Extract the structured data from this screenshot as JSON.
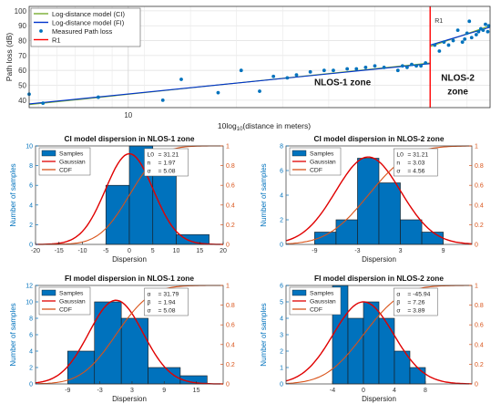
{
  "chart_data": [
    {
      "type": "scatter",
      "title": "",
      "xlabel": "10log10(distance in meters)",
      "ylabel": "Path loss (dB)",
      "xlim": [
        0,
        100
      ],
      "ylim": [
        35,
        103
      ],
      "xticks": [
        {
          "value": 21.5,
          "label": "10"
        }
      ],
      "yticks": [
        40,
        50,
        60,
        70,
        80,
        90,
        100
      ],
      "grid": true,
      "legend": {
        "placement": "top-left",
        "entries": [
          {
            "name": "Log-distance model (CI)",
            "color": "#77ac30",
            "kind": "line"
          },
          {
            "name": "Log-distance model (FI)",
            "color": "#0033cc",
            "kind": "line"
          },
          {
            "name": "Measured Path loss",
            "color": "#0072bd",
            "kind": "marker"
          },
          {
            "name": "R1",
            "color": "#ff0000",
            "kind": "line"
          }
        ]
      },
      "series": [
        {
          "name": "Measured Path loss",
          "points": [
            [
              0,
              44
            ],
            [
              3,
              38
            ],
            [
              15,
              42
            ],
            [
              29,
              40
            ],
            [
              33,
              54
            ],
            [
              41,
              45
            ],
            [
              46,
              60
            ],
            [
              50,
              46
            ],
            [
              53,
              56
            ],
            [
              56,
              55
            ],
            [
              58,
              57
            ],
            [
              61,
              59
            ],
            [
              64,
              60
            ],
            [
              66,
              60
            ],
            [
              69,
              61
            ],
            [
              71,
              61
            ],
            [
              73,
              62
            ],
            [
              75,
              63
            ],
            [
              77,
              62
            ],
            [
              80,
              60
            ],
            [
              81,
              63
            ],
            [
              82,
              62
            ],
            [
              83,
              64
            ],
            [
              84,
              63
            ],
            [
              85,
              63
            ],
            [
              86,
              65
            ],
            [
              88,
              77
            ],
            [
              89,
              73
            ],
            [
              90,
              79
            ],
            [
              91,
              77
            ],
            [
              92,
              80
            ],
            [
              93,
              87
            ],
            [
              94,
              79
            ],
            [
              94.5,
              81
            ],
            [
              95,
              85
            ],
            [
              95.5,
              93
            ],
            [
              96,
              82
            ],
            [
              97,
              84
            ],
            [
              97.5,
              86
            ],
            [
              98,
              88
            ],
            [
              98.5,
              87
            ],
            [
              99,
              91
            ],
            [
              99.5,
              86
            ],
            [
              99.7,
              90
            ]
          ]
        },
        {
          "name": "Log-distance model (CI)",
          "points": [
            [
              0,
              37
            ],
            [
              87,
              65
            ]
          ],
          "color": "#77ac30"
        },
        {
          "name": "Log-distance model (FI)",
          "points": [
            [
              0,
              37.5
            ],
            [
              87,
              64.5
            ]
          ],
          "color": "#0033cc"
        },
        {
          "name": "Log-distance model (CI) NLOS-2",
          "points": [
            [
              87,
              76
            ],
            [
              100,
              90
            ]
          ],
          "color": "#77ac30"
        },
        {
          "name": "Log-distance model (FI) NLOS-2",
          "points": [
            [
              87,
              77
            ],
            [
              100,
              89
            ]
          ],
          "color": "#0033cc"
        }
      ],
      "vline": {
        "name": "R1",
        "x": 87,
        "label": "R1"
      },
      "annotations": [
        {
          "text": "NLOS-1 zone",
          "x": 68,
          "y": 50
        },
        {
          "text": "NLOS-2",
          "x": 93,
          "y": 53
        },
        {
          "text": "zone",
          "x": 93,
          "y": 44
        }
      ]
    },
    {
      "type": "histogram",
      "title": "CI model dispersion in NLOS-1 zone",
      "xlabel": "Dispersion",
      "ylabel": "Number of samples",
      "xlim": [
        -20,
        20
      ],
      "ylim": [
        0,
        10
      ],
      "xticks": [
        -20,
        -15,
        -10,
        -5,
        0,
        5,
        10,
        15,
        20
      ],
      "yticks": [
        0,
        2,
        4,
        6,
        8,
        10
      ],
      "y2ticks": [
        "0",
        "0.2",
        "0.4",
        "0.6",
        "0.8",
        "1"
      ],
      "bins": [
        {
          "x0": -5,
          "x1": 0,
          "value": 6
        },
        {
          "x0": 0,
          "x1": 5,
          "value": 10
        },
        {
          "x0": 5,
          "x1": 10,
          "value": 7
        },
        {
          "x0": 10,
          "x1": 17,
          "value": 1
        }
      ],
      "gaussian": {
        "mu": 0,
        "sigma": 5.08,
        "peak": 9.2
      },
      "cdf": {
        "mu": 0,
        "sigma": 5.08
      },
      "legend": [
        "Samples",
        "Gaussian",
        "CDF"
      ],
      "param_labels": [
        "L0",
        "n",
        "σ"
      ],
      "params": [
        "= 31.21",
        "= 1.97",
        "= 5.08"
      ]
    },
    {
      "type": "histogram",
      "title": "CI model dispersion in NLOS-2 zone",
      "xlabel": "Dispersion",
      "ylabel": "Number of samples",
      "xlim": [
        -13,
        13
      ],
      "ylim": [
        0,
        8
      ],
      "xticks": [
        -9,
        -3,
        3,
        9
      ],
      "yticks": [
        0,
        2,
        4,
        6,
        8
      ],
      "y2ticks": [
        "0",
        "0.2",
        "0.4",
        "0.6",
        "0.8",
        "1"
      ],
      "bins": [
        {
          "x0": -9,
          "x1": -6,
          "value": 1
        },
        {
          "x0": -6,
          "x1": -3,
          "value": 2
        },
        {
          "x0": -3,
          "x1": 0,
          "value": 7
        },
        {
          "x0": 0,
          "x1": 3,
          "value": 5
        },
        {
          "x0": 3,
          "x1": 6,
          "value": 2
        },
        {
          "x0": 6,
          "x1": 9,
          "value": 1
        }
      ],
      "gaussian": {
        "mu": -1.5,
        "sigma": 4.56,
        "peak": 7.1
      },
      "cdf": {
        "mu": -1.5,
        "sigma": 4.56
      },
      "legend": [
        "Samples",
        "Gaussian",
        "CDF"
      ],
      "param_labels": [
        "L0",
        "n",
        "σ"
      ],
      "params": [
        "= 31.21",
        "= 3.03",
        "= 4.56"
      ]
    },
    {
      "type": "histogram",
      "title": "FI model dispersion in NLOS-1 zone",
      "xlabel": "Dispersion",
      "ylabel": "Number of samples",
      "xlim": [
        -15,
        20
      ],
      "ylim": [
        0,
        12
      ],
      "xticks": [
        -9,
        -3,
        3,
        9,
        15
      ],
      "yticks": [
        0,
        2,
        4,
        6,
        8,
        10,
        12
      ],
      "y2ticks": [
        "0",
        "0.2",
        "0.4",
        "0.6",
        "0.8",
        "1"
      ],
      "bins": [
        {
          "x0": -9,
          "x1": -4,
          "value": 4
        },
        {
          "x0": -4,
          "x1": 1,
          "value": 10
        },
        {
          "x0": 1,
          "x1": 6,
          "value": 8
        },
        {
          "x0": 6,
          "x1": 12,
          "value": 2
        },
        {
          "x0": 12,
          "x1": 17,
          "value": 1
        }
      ],
      "gaussian": {
        "mu": 0,
        "sigma": 5.08,
        "peak": 10.2
      },
      "cdf": {
        "mu": 0,
        "sigma": 5.08
      },
      "legend": [
        "Samples",
        "Gaussian",
        "CDF"
      ],
      "param_labels": [
        "α",
        "β",
        "σ"
      ],
      "params": [
        "= 31.79",
        "= 1.94",
        "= 5.08"
      ]
    },
    {
      "type": "histogram",
      "title": "FI model dispersion in NLOS-2 zone",
      "xlabel": "Dispersion",
      "ylabel": "Number of samples",
      "xlim": [
        -10,
        14
      ],
      "ylim": [
        0,
        6
      ],
      "xticks": [
        -4,
        0,
        4,
        8
      ],
      "yticks": [
        0,
        1,
        2,
        3,
        4,
        5,
        6
      ],
      "y2ticks": [
        "0",
        "0.2",
        "0.4",
        "0.6",
        "0.8",
        "1"
      ],
      "bins": [
        {
          "x0": -4,
          "x1": -2,
          "value": 6
        },
        {
          "x0": -2,
          "x1": 0,
          "value": 4
        },
        {
          "x0": 0,
          "x1": 2,
          "value": 5
        },
        {
          "x0": 2,
          "x1": 4,
          "value": 4
        },
        {
          "x0": 4,
          "x1": 6,
          "value": 2
        },
        {
          "x0": 6,
          "x1": 8,
          "value": 1
        }
      ],
      "gaussian": {
        "mu": 0,
        "sigma": 3.89,
        "peak": 5.0
      },
      "cdf": {
        "mu": 0,
        "sigma": 3.89
      },
      "legend": [
        "Samples",
        "Gaussian",
        "CDF"
      ],
      "param_labels": [
        "α",
        "β",
        "σ"
      ],
      "params": [
        "= -45.94",
        "= 7.26",
        "= 3.89"
      ]
    }
  ]
}
